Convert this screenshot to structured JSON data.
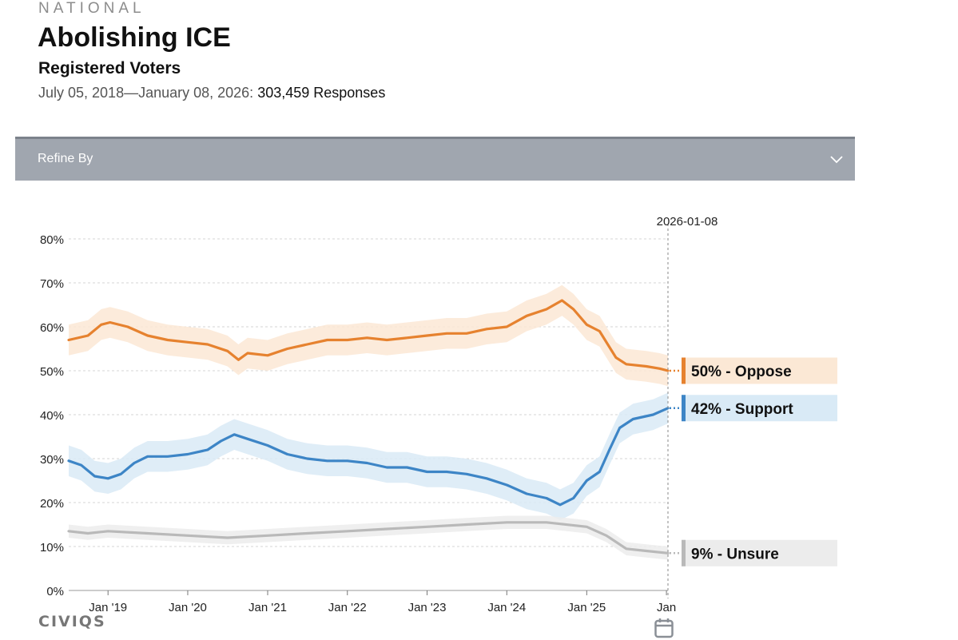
{
  "header": {
    "eyebrow": "NATIONAL",
    "title": "Abolishing ICE",
    "subtitle": "Registered Voters",
    "date_range": "July 05, 2018—January 08, 2026:",
    "responses": "303,459 Responses"
  },
  "refine": {
    "label": "Refine By",
    "icon": "chevron-down-icon"
  },
  "brand": {
    "logo_text": "CIVIQS"
  },
  "calendar": {
    "icon": "calendar-icon"
  },
  "colors": {
    "oppose": "#e6822f",
    "support": "#3d85c6",
    "unsure": "#b9b9b9",
    "oppose_band": "#fbe8d5",
    "support_band": "#d9eaf6",
    "unsure_band": "#ececec"
  },
  "chart_data": {
    "type": "line",
    "marker_date": "2026-01-08",
    "x_ticks": [
      "Jan '19",
      "Jan '20",
      "Jan '21",
      "Jan '22",
      "Jan '23",
      "Jan '24",
      "Jan '25",
      "Jan"
    ],
    "y_ticks": [
      "0%",
      "10%",
      "20%",
      "30%",
      "40%",
      "50%",
      "60%",
      "70%",
      "80%"
    ],
    "ylim": [
      0,
      80
    ],
    "xlim": [
      "2018-07-05",
      "2026-01-08"
    ],
    "grid": true,
    "series": [
      {
        "key": "oppose",
        "label": "50% - Oppose",
        "band": 3.5,
        "points": [
          [
            "2018-07-05",
            57
          ],
          [
            "2018-10-01",
            58
          ],
          [
            "2018-12-01",
            60.5
          ],
          [
            "2019-01-10",
            61
          ],
          [
            "2019-04-01",
            60
          ],
          [
            "2019-07-01",
            58
          ],
          [
            "2019-10-01",
            57
          ],
          [
            "2020-01-01",
            56.5
          ],
          [
            "2020-04-01",
            56
          ],
          [
            "2020-07-01",
            54.5
          ],
          [
            "2020-08-20",
            52.5
          ],
          [
            "2020-10-01",
            54
          ],
          [
            "2021-01-01",
            53.5
          ],
          [
            "2021-04-01",
            55
          ],
          [
            "2021-07-01",
            56
          ],
          [
            "2021-10-01",
            57
          ],
          [
            "2022-01-01",
            57
          ],
          [
            "2022-04-01",
            57.5
          ],
          [
            "2022-07-01",
            57
          ],
          [
            "2022-10-01",
            57.5
          ],
          [
            "2023-01-01",
            58
          ],
          [
            "2023-04-01",
            58.5
          ],
          [
            "2023-07-01",
            58.5
          ],
          [
            "2023-10-01",
            59.5
          ],
          [
            "2024-01-01",
            60
          ],
          [
            "2024-04-01",
            62.5
          ],
          [
            "2024-07-01",
            64
          ],
          [
            "2024-09-10",
            66
          ],
          [
            "2024-11-01",
            64
          ],
          [
            "2025-01-01",
            60.5
          ],
          [
            "2025-03-01",
            59
          ],
          [
            "2025-05-15",
            53
          ],
          [
            "2025-07-01",
            51.5
          ],
          [
            "2025-10-01",
            51
          ],
          [
            "2025-12-01",
            50.5
          ],
          [
            "2026-01-08",
            50
          ]
        ]
      },
      {
        "key": "support",
        "label": "42% - Support",
        "band": 3.5,
        "points": [
          [
            "2018-07-05",
            29.5
          ],
          [
            "2018-09-01",
            28.5
          ],
          [
            "2018-11-01",
            26
          ],
          [
            "2019-01-01",
            25.5
          ],
          [
            "2019-03-01",
            26.5
          ],
          [
            "2019-05-01",
            29
          ],
          [
            "2019-07-01",
            30.5
          ],
          [
            "2019-10-01",
            30.5
          ],
          [
            "2020-01-01",
            31
          ],
          [
            "2020-04-01",
            32
          ],
          [
            "2020-06-01",
            34
          ],
          [
            "2020-08-01",
            35.5
          ],
          [
            "2020-10-01",
            34.5
          ],
          [
            "2021-01-01",
            33
          ],
          [
            "2021-04-01",
            31
          ],
          [
            "2021-07-01",
            30
          ],
          [
            "2021-10-01",
            29.5
          ],
          [
            "2022-01-01",
            29.5
          ],
          [
            "2022-04-01",
            29
          ],
          [
            "2022-07-01",
            28
          ],
          [
            "2022-10-01",
            28
          ],
          [
            "2023-01-01",
            27
          ],
          [
            "2023-04-01",
            27
          ],
          [
            "2023-07-01",
            26.5
          ],
          [
            "2023-10-01",
            25.5
          ],
          [
            "2024-01-01",
            24
          ],
          [
            "2024-04-01",
            22
          ],
          [
            "2024-07-01",
            21
          ],
          [
            "2024-09-01",
            19.5
          ],
          [
            "2024-11-01",
            21
          ],
          [
            "2025-01-01",
            25
          ],
          [
            "2025-03-01",
            27
          ],
          [
            "2025-04-15",
            32
          ],
          [
            "2025-06-01",
            37
          ],
          [
            "2025-08-01",
            39
          ],
          [
            "2025-11-01",
            40
          ],
          [
            "2026-01-08",
            41.5
          ]
        ]
      },
      {
        "key": "unsure",
        "label": "9% - Unsure",
        "band": 1.5,
        "points": [
          [
            "2018-07-05",
            13.5
          ],
          [
            "2018-10-01",
            13
          ],
          [
            "2019-01-01",
            13.5
          ],
          [
            "2019-07-01",
            13
          ],
          [
            "2020-01-01",
            12.5
          ],
          [
            "2020-07-01",
            12
          ],
          [
            "2021-01-01",
            12.5
          ],
          [
            "2021-07-01",
            13
          ],
          [
            "2022-01-01",
            13.5
          ],
          [
            "2022-07-01",
            14
          ],
          [
            "2023-01-01",
            14.5
          ],
          [
            "2023-07-01",
            15
          ],
          [
            "2024-01-01",
            15.5
          ],
          [
            "2024-07-01",
            15.5
          ],
          [
            "2025-01-01",
            14.5
          ],
          [
            "2025-04-01",
            12.5
          ],
          [
            "2025-07-01",
            9.5
          ],
          [
            "2025-10-01",
            9
          ],
          [
            "2026-01-08",
            8.5
          ]
        ]
      }
    ]
  }
}
